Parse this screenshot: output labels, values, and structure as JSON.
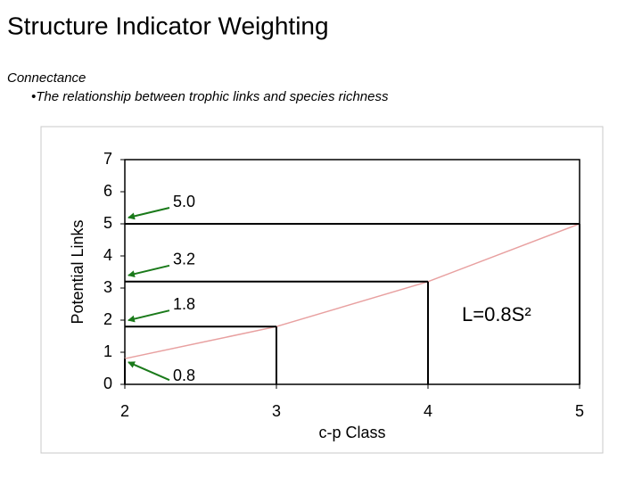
{
  "slide": {
    "title": "Structure Indicator Weighting",
    "heading": "Connectance",
    "bullet": "•The relationship between trophic links and species richness"
  },
  "chart_data": {
    "type": "line",
    "x": [
      2,
      3,
      4,
      5
    ],
    "values": [
      0.8,
      1.8,
      3.2,
      5
    ],
    "value_labels": [
      "0.8",
      "1.8",
      "3.2",
      "5.0"
    ],
    "color": "#e8a0a0",
    "xlim": [
      2,
      5
    ],
    "xticks": [
      2,
      3,
      4,
      5
    ],
    "ylim": [
      0,
      7
    ],
    "yticks": [
      0,
      1,
      2,
      3,
      4,
      5,
      6,
      7
    ],
    "xlabel": "c-p Class",
    "ylabel": "Potential Links",
    "annotation": "L=0.8S²",
    "arrow_color": "#1a7a1a"
  }
}
